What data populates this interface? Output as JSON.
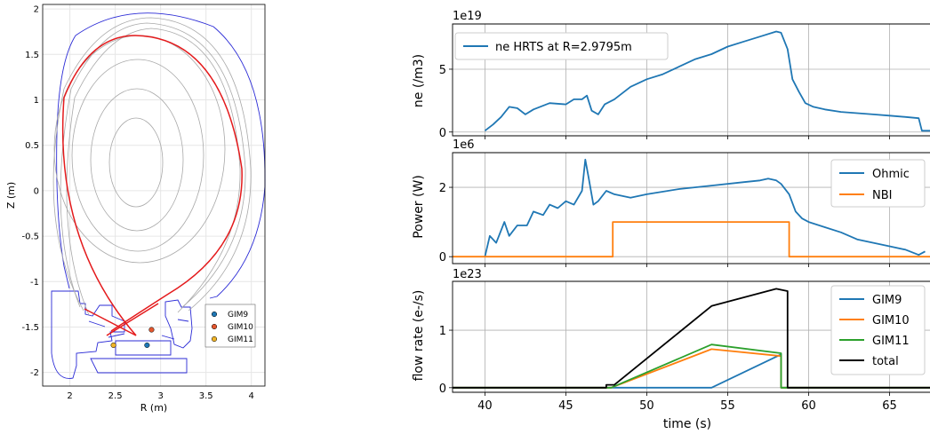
{
  "colors": {
    "blue": "#1f77b4",
    "orange": "#ff7f0e",
    "green": "#2ca02c",
    "black": "#000000",
    "red": "#e41a1c",
    "wall": "#2b2bd6",
    "flux": "#a8a8a8",
    "gim9": "#1f77b4",
    "gim10": "#e4572e",
    "gim11": "#f0b429"
  },
  "chart_data": [
    {
      "type": "line",
      "panel": "equilibrium",
      "xlabel": "R (m)",
      "ylabel": "Z (m)",
      "xlim": [
        1.7,
        4.15
      ],
      "ylim": [
        -2.15,
        2.05
      ],
      "xticks": [
        "2",
        "2.5",
        "3",
        "3.5",
        "4"
      ],
      "yticks": [
        "2",
        "1.5",
        "1",
        "0.5",
        "0",
        "-0.5",
        "-1",
        "-1.5",
        "-2"
      ],
      "grid": true,
      "legend": {
        "position": "bottom-right",
        "entries": [
          "GIM9",
          "GIM10",
          "GIM11"
        ]
      },
      "points": [
        {
          "name": "GIM9",
          "x": 2.85,
          "y": -1.7
        },
        {
          "name": "GIM10",
          "x": 2.9,
          "y": -1.53
        },
        {
          "name": "GIM11",
          "x": 2.48,
          "y": -1.7
        }
      ]
    },
    {
      "type": "line",
      "panel": "density",
      "ylabel": "ne (/m3)",
      "multiplier": "1e19",
      "ylim": [
        -0.3,
        8.6
      ],
      "yticks": [
        "0",
        "5"
      ],
      "legend": {
        "position": "top-left",
        "entries": [
          "ne HRTS at R=2.9795m"
        ]
      },
      "series": [
        {
          "name": "ne HRTS at R=2.9795m",
          "x": [
            40,
            40.5,
            41,
            41.5,
            42,
            42.5,
            43,
            44,
            45,
            45.5,
            46,
            46.3,
            46.6,
            47,
            47.4,
            48,
            49,
            50,
            51,
            52,
            53,
            54,
            55,
            56,
            57,
            58,
            58.3,
            58.7,
            59,
            59.4,
            59.8,
            60.3,
            61,
            62,
            63,
            64,
            65,
            66,
            66.8,
            67,
            67.5
          ],
          "y": [
            0.1,
            0.6,
            1.2,
            2.0,
            1.9,
            1.4,
            1.8,
            2.3,
            2.2,
            2.6,
            2.6,
            2.9,
            1.7,
            1.4,
            2.2,
            2.6,
            3.6,
            4.2,
            4.6,
            5.2,
            5.8,
            6.2,
            6.8,
            7.2,
            7.6,
            8.0,
            7.9,
            6.6,
            4.2,
            3.2,
            2.3,
            2.0,
            1.8,
            1.6,
            1.5,
            1.4,
            1.3,
            1.2,
            1.1,
            0.1,
            0.1
          ]
        }
      ]
    },
    {
      "type": "line",
      "panel": "power",
      "ylabel": "Power (W)",
      "multiplier": "1e6",
      "ylim": [
        -0.2,
        3.0
      ],
      "yticks": [
        "0",
        "2"
      ],
      "legend": {
        "position": "top-right",
        "entries": [
          "Ohmic",
          "NBI"
        ]
      },
      "series": [
        {
          "name": "Ohmic",
          "x": [
            40,
            40.3,
            40.7,
            41.2,
            41.5,
            42,
            42.6,
            43,
            43.6,
            44,
            44.5,
            45,
            45.5,
            46,
            46.2,
            46.4,
            46.7,
            47,
            47.5,
            48,
            49,
            50,
            52,
            54,
            56,
            57,
            57.5,
            58,
            58.3,
            58.8,
            59.2,
            59.6,
            60,
            61,
            62,
            63,
            64,
            65,
            66,
            66.8,
            67.2
          ],
          "y": [
            0.0,
            0.6,
            0.4,
            1.0,
            0.6,
            0.9,
            0.9,
            1.3,
            1.2,
            1.5,
            1.4,
            1.6,
            1.5,
            1.9,
            2.8,
            2.3,
            1.5,
            1.6,
            1.9,
            1.8,
            1.7,
            1.8,
            1.95,
            2.05,
            2.15,
            2.2,
            2.25,
            2.2,
            2.1,
            1.8,
            1.3,
            1.1,
            1.0,
            0.85,
            0.7,
            0.5,
            0.4,
            0.3,
            0.2,
            0.05,
            0.15
          ]
        },
        {
          "name": "NBI",
          "x": [
            38,
            47.9,
            47.9,
            58.8,
            58.8,
            67.5
          ],
          "y": [
            0,
            0,
            1.0,
            1.0,
            0,
            0
          ]
        }
      ]
    },
    {
      "type": "line",
      "panel": "flow",
      "xlabel": "time (s)",
      "ylabel": "flow rate (e-/s)",
      "multiplier": "1e23",
      "xlim": [
        38,
        67.5
      ],
      "ylim": [
        -0.08,
        1.85
      ],
      "xticks": [
        40,
        45,
        50,
        55,
        60,
        65
      ],
      "yticks": [
        "0",
        "1"
      ],
      "legend": {
        "position": "top-right",
        "entries": [
          "GIM9",
          "GIM10",
          "GIM11",
          "total"
        ]
      },
      "series": [
        {
          "name": "GIM9",
          "x": [
            38,
            54,
            58.3,
            58.3,
            67.5
          ],
          "y": [
            0,
            0,
            0.58,
            0,
            0
          ]
        },
        {
          "name": "GIM10",
          "x": [
            38,
            47.8,
            54,
            58.3,
            58.3,
            67.5
          ],
          "y": [
            0,
            0,
            0.67,
            0.55,
            0,
            0
          ]
        },
        {
          "name": "GIM11",
          "x": [
            38,
            47.8,
            54,
            58.3,
            58.3,
            67.5
          ],
          "y": [
            0,
            0,
            0.75,
            0.6,
            0,
            0
          ]
        },
        {
          "name": "total",
          "x": [
            38,
            47.5,
            47.5,
            48,
            54,
            58,
            58.7,
            58.7,
            67.5
          ],
          "y": [
            0,
            0,
            0.05,
            0.05,
            1.42,
            1.72,
            1.68,
            0,
            0
          ]
        }
      ]
    }
  ]
}
